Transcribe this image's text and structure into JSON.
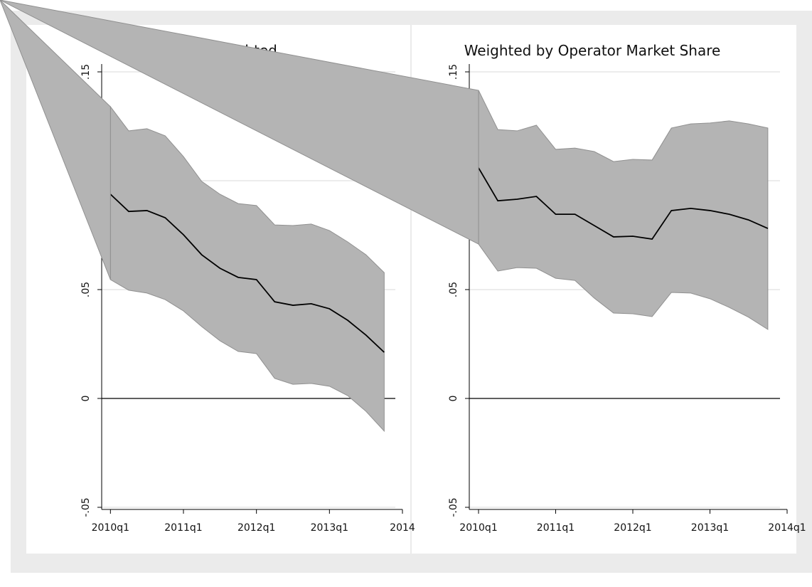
{
  "chart_data": [
    {
      "type": "line",
      "title": "Unweighted",
      "x": [
        2010,
        2010.25,
        2010.5,
        2010.75,
        2011,
        2011.25,
        2011.5,
        2011.75,
        2012,
        2012.25,
        2012.5,
        2012.75,
        2013,
        2013.25,
        2013.5,
        2013.75
      ],
      "values": [
        0.0938,
        0.0859,
        0.0863,
        0.083,
        0.0752,
        0.066,
        0.0598,
        0.0556,
        0.0546,
        0.0444,
        0.0428,
        0.0435,
        0.0412,
        0.0359,
        0.0291,
        0.0212
      ],
      "ci_upper": [
        0.134,
        0.1229,
        0.1239,
        0.1206,
        0.1111,
        0.0997,
        0.0938,
        0.0895,
        0.0886,
        0.0797,
        0.0794,
        0.0801,
        0.0771,
        0.0719,
        0.066,
        0.0578
      ],
      "ci_lower": [
        0.0546,
        0.0497,
        0.0484,
        0.0454,
        0.0402,
        0.033,
        0.0265,
        0.0216,
        0.0206,
        0.0092,
        0.0065,
        0.0069,
        0.0056,
        0.0013,
        -0.0059,
        -0.015
      ],
      "color": "#000000",
      "band_color": "#b4b4b4",
      "xlim": [
        2009.88,
        2014
      ],
      "ylim": [
        -0.05,
        0.15
      ],
      "xticks": [
        {
          "value": 2010,
          "label": "2010q1"
        },
        {
          "value": 2011,
          "label": "2011q1"
        },
        {
          "value": 2012,
          "label": "2012q1"
        },
        {
          "value": 2013,
          "label": "2013q1"
        },
        {
          "value": 2014,
          "label": "2014"
        }
      ],
      "yticks": [
        {
          "value": -0.05,
          "label": "-.05"
        },
        0,
        {
          "value": 0.05,
          "label": ".05"
        },
        {
          "value": 0.1,
          "label": ".1"
        },
        {
          "value": 0.15,
          "label": ".15"
        }
      ],
      "grid": true
    },
    {
      "type": "line",
      "title": "Weighted by Operator Market Share",
      "x": [
        2010,
        2010.25,
        2010.5,
        2010.75,
        2011,
        2011.25,
        2011.5,
        2011.75,
        2012,
        2012.25,
        2012.5,
        2012.75,
        2013,
        2013.25,
        2013.5,
        2013.75
      ],
      "values": [
        0.1059,
        0.0908,
        0.0915,
        0.0928,
        0.0846,
        0.0846,
        0.0794,
        0.0742,
        0.0745,
        0.0732,
        0.0863,
        0.0873,
        0.0863,
        0.0846,
        0.082,
        0.0781
      ],
      "ci_upper": [
        0.1415,
        0.1235,
        0.1229,
        0.1255,
        0.1144,
        0.115,
        0.1134,
        0.1088,
        0.1098,
        0.1095,
        0.1242,
        0.1261,
        0.1265,
        0.1275,
        0.1261,
        0.1242
      ],
      "ci_lower": [
        0.0709,
        0.0585,
        0.0601,
        0.0598,
        0.0552,
        0.0542,
        0.0461,
        0.0392,
        0.0389,
        0.0376,
        0.0487,
        0.0484,
        0.0458,
        0.0418,
        0.0373,
        0.0317
      ],
      "color": "#000000",
      "band_color": "#b4b4b4",
      "xlim": [
        2009.88,
        2014
      ],
      "ylim": [
        -0.05,
        0.15
      ],
      "xticks": [
        {
          "value": 2010,
          "label": "2010q1"
        },
        {
          "value": 2011,
          "label": "2011q1"
        },
        {
          "value": 2012,
          "label": "2012q1"
        },
        {
          "value": 2013,
          "label": "2013q1"
        },
        {
          "value": 2014,
          "label": "2014q1"
        }
      ],
      "yticks": [
        {
          "value": -0.05,
          "label": "-.05"
        },
        0,
        {
          "value": 0.05,
          "label": ".05"
        },
        {
          "value": 0.1,
          "label": ".1"
        },
        {
          "value": 0.15,
          "label": ".15"
        }
      ],
      "grid": true
    }
  ]
}
